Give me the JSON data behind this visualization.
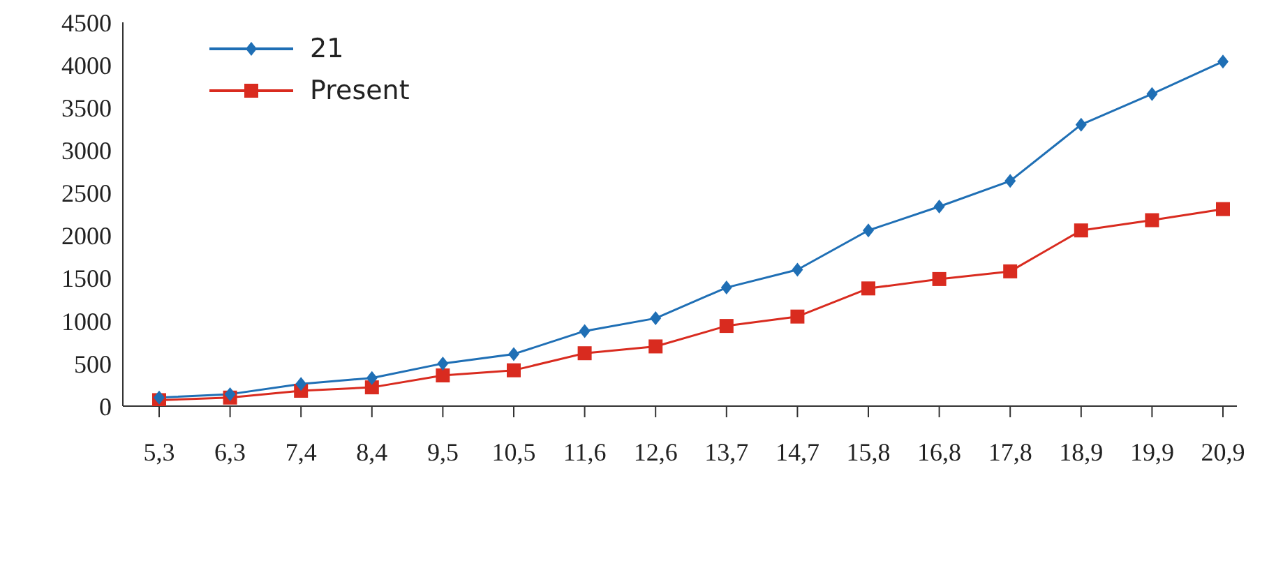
{
  "chart_data": {
    "type": "line",
    "categories": [
      "5,3",
      "6,3",
      "7,4",
      "8,4",
      "9,5",
      "10,5",
      "11,6",
      "12,6",
      "13,7",
      "14,7",
      "15,8",
      "16,8",
      "17,8",
      "18,9",
      "19,9",
      "20,9"
    ],
    "series": [
      {
        "name": "21",
        "color": "#1f6fb5",
        "marker": "diamond",
        "values": [
          100,
          140,
          260,
          330,
          500,
          610,
          880,
          1030,
          1390,
          1600,
          2060,
          2340,
          2640,
          3300,
          3660,
          4040
        ]
      },
      {
        "name": "Present",
        "color": "#d92b1f",
        "marker": "square",
        "values": [
          70,
          100,
          180,
          220,
          360,
          420,
          620,
          700,
          940,
          1050,
          1380,
          1490,
          1580,
          2060,
          2180,
          2310
        ]
      }
    ],
    "ylim": [
      0,
      4500
    ],
    "yticks": [
      0,
      500,
      1000,
      1500,
      2000,
      2500,
      3000,
      3500,
      4000,
      4500
    ],
    "grid": false,
    "legend": "top left",
    "line_style": "solid"
  }
}
